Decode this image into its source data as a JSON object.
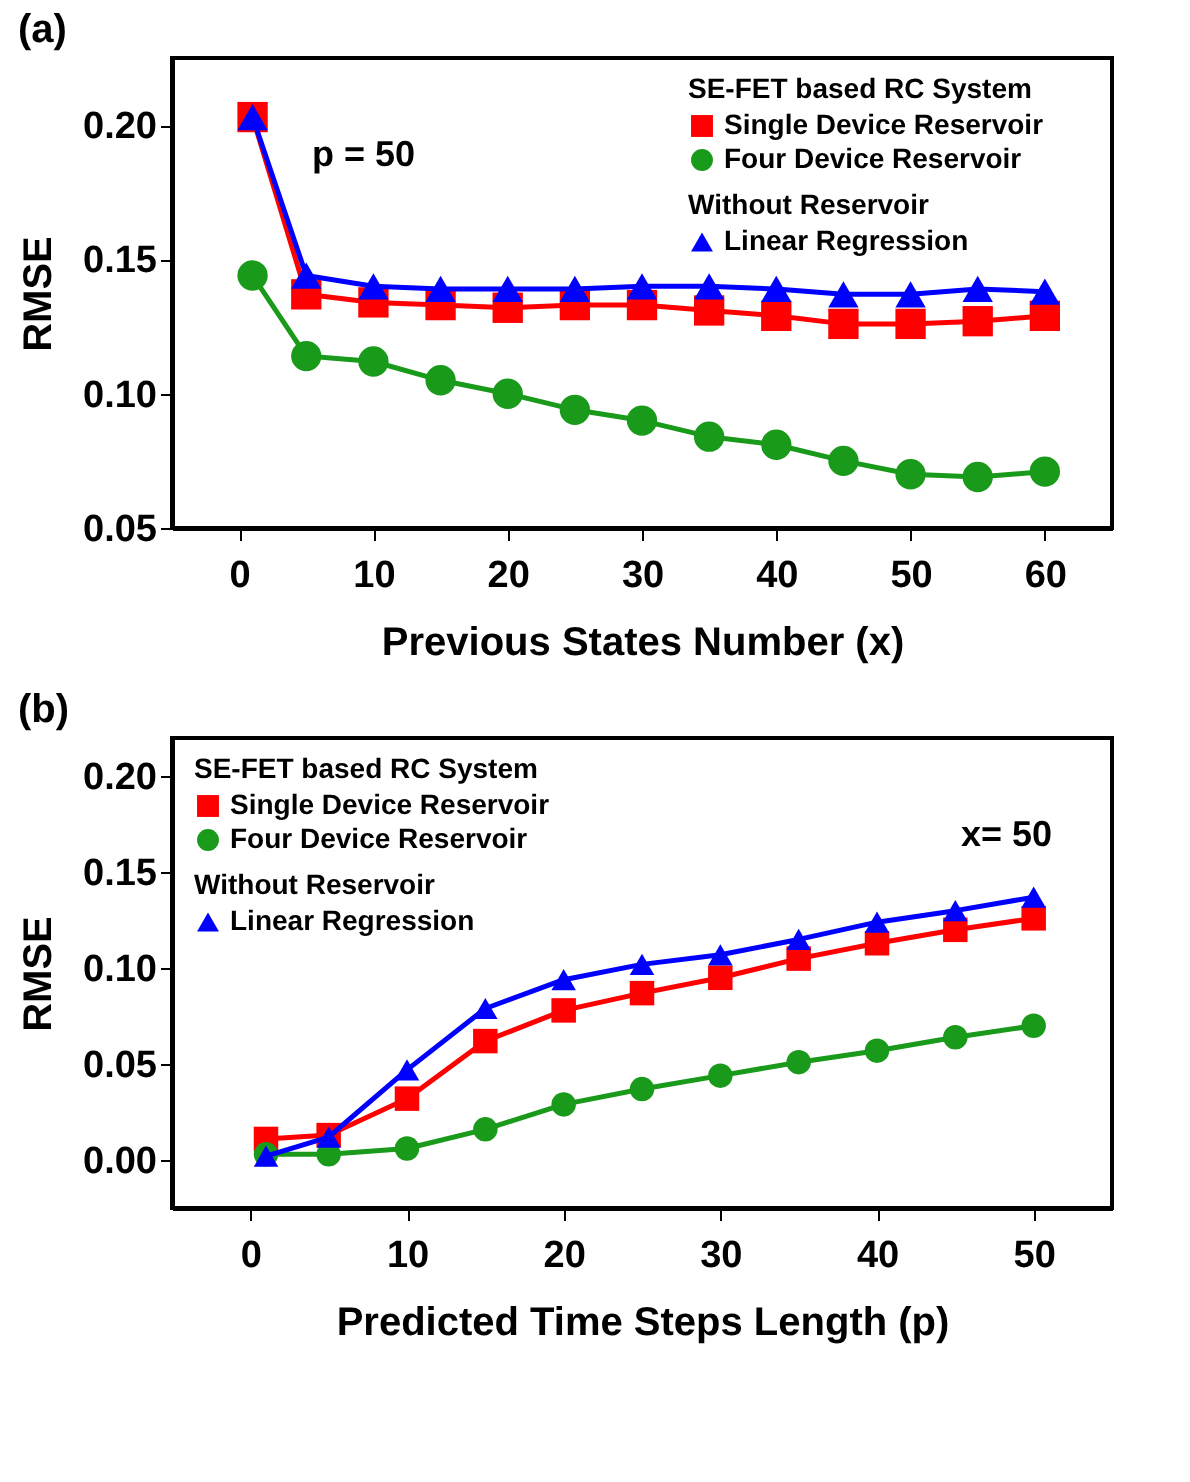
{
  "chart_data": [
    {
      "type": "line",
      "title": "(a)",
      "xlabel": "Previous States Number (x)",
      "ylabel": "RMSE",
      "legend_title": [
        "SE-FET based RC System",
        null,
        "Without Reservoir"
      ],
      "annotations": [
        "p = 50"
      ],
      "x": [
        1,
        5,
        10,
        15,
        20,
        25,
        30,
        35,
        40,
        45,
        50,
        55,
        60
      ],
      "series": [
        {
          "name": "Single Device Reservoir",
          "color": "#ff0000",
          "marker": "square",
          "values": [
            0.203,
            0.137,
            0.134,
            0.133,
            0.132,
            0.133,
            0.133,
            0.131,
            0.129,
            0.126,
            0.126,
            0.127,
            0.129
          ]
        },
        {
          "name": "Four Device Reservoir",
          "color": "#1a9a1a",
          "marker": "circle",
          "values": [
            0.144,
            0.114,
            0.112,
            0.105,
            0.1,
            0.094,
            0.09,
            0.084,
            0.081,
            0.075,
            0.07,
            0.069,
            0.071
          ]
        },
        {
          "name": "Linear Regression",
          "color": "#0000ff",
          "marker": "triangle",
          "values": [
            0.203,
            0.144,
            0.14,
            0.139,
            0.139,
            0.139,
            0.14,
            0.14,
            0.139,
            0.137,
            0.137,
            0.139,
            0.138
          ]
        }
      ],
      "xlim": [
        -5,
        65
      ],
      "ylim": [
        0.05,
        0.225
      ],
      "xticks": [
        0,
        10,
        20,
        30,
        40,
        50,
        60
      ],
      "yticks": [
        {
          "value": 0.05,
          "label": "0.05"
        },
        {
          "value": 0.1,
          "label": "0.10"
        },
        {
          "value": 0.15,
          "label": "0.15"
        },
        {
          "value": 0.2,
          "label": "0.20"
        }
      ],
      "grid": false,
      "legend": "top right",
      "line_style": "solid"
    },
    {
      "type": "line",
      "title": "(b)",
      "xlabel": "Predicted Time Steps Length (p)",
      "ylabel": "RMSE",
      "legend_title": [
        "SE-FET based RC System",
        null,
        "Without Reservoir"
      ],
      "annotations": [
        "x= 50"
      ],
      "x": [
        1,
        5,
        10,
        15,
        20,
        25,
        30,
        35,
        40,
        45,
        50
      ],
      "series": [
        {
          "name": "Single Device Reservoir",
          "color": "#ff0000",
          "marker": "square",
          "values": [
            0.011,
            0.013,
            0.032,
            0.062,
            0.078,
            0.087,
            0.095,
            0.105,
            0.113,
            0.12,
            0.126
          ]
        },
        {
          "name": "Four Device Reservoir",
          "color": "#1a9a1a",
          "marker": "circle",
          "values": [
            0.003,
            0.003,
            0.006,
            0.016,
            0.029,
            0.037,
            0.044,
            0.051,
            0.057,
            0.064,
            0.07
          ]
        },
        {
          "name": "Linear Regression",
          "color": "#0000ff",
          "marker": "triangle",
          "values": [
            0.002,
            0.012,
            0.047,
            0.079,
            0.094,
            0.102,
            0.107,
            0.115,
            0.124,
            0.13,
            0.137
          ]
        }
      ],
      "xlim": [
        -5,
        55
      ],
      "ylim": [
        -0.025,
        0.22
      ],
      "xticks": [
        0,
        10,
        20,
        30,
        40,
        50
      ],
      "yticks": [
        {
          "value": 0,
          "label": "0.00"
        },
        {
          "value": 0.05,
          "label": "0.05"
        },
        {
          "value": 0.1,
          "label": "0.10"
        },
        {
          "value": 0.15,
          "label": "0.15"
        },
        {
          "value": 0.2,
          "label": "0.20"
        }
      ],
      "grid": false,
      "legend": "top left",
      "line_style": "solid"
    }
  ]
}
